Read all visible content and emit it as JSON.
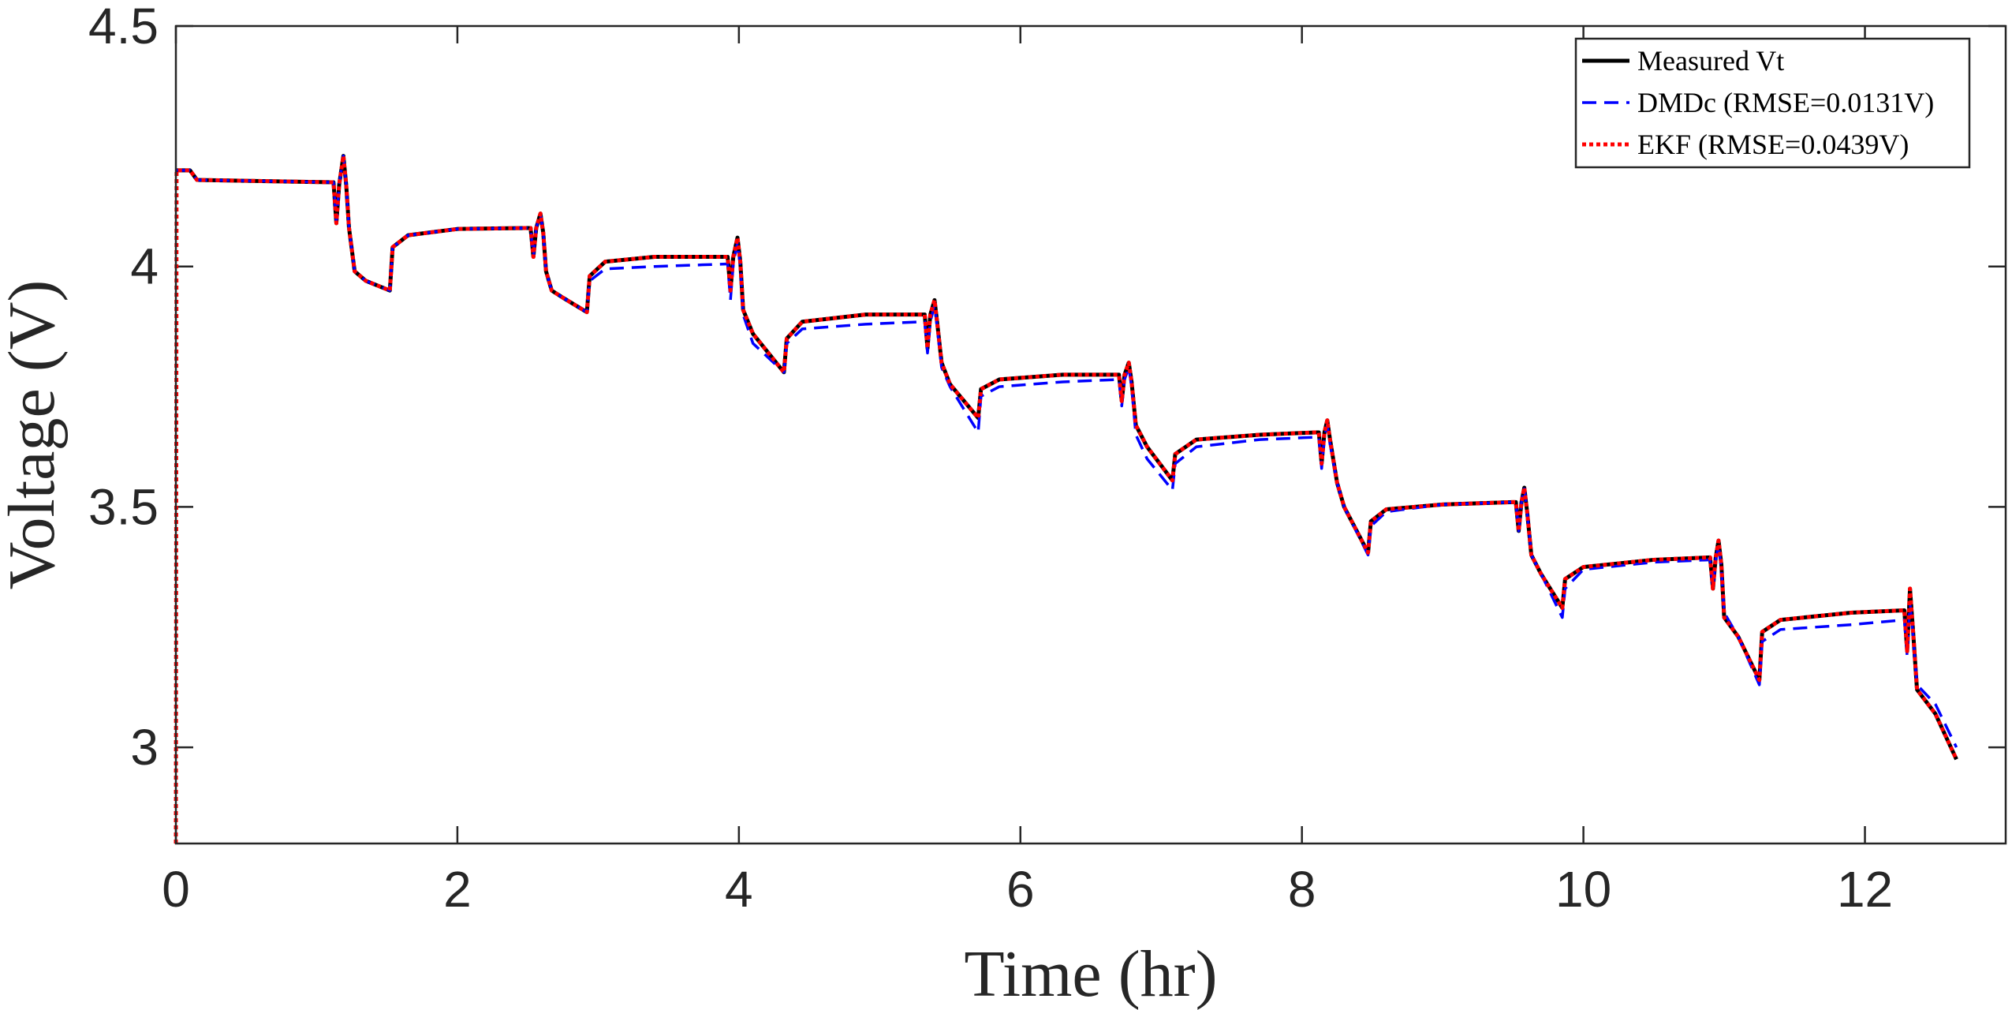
{
  "chart_data": {
    "type": "line",
    "x_label": "Time (hr)",
    "y_label": "Voltage (V)",
    "xlim": [
      0,
      13
    ],
    "ylim": [
      2.8,
      4.5
    ],
    "xticks": [
      0,
      2,
      4,
      6,
      8,
      10,
      12
    ],
    "yticks": [
      3,
      3.5,
      4,
      4.5
    ],
    "grid": false,
    "legend_position": "top-right",
    "x": [
      0,
      0.005,
      0.1,
      0.15,
      1.12,
      1.14,
      1.16,
      1.19,
      1.21,
      1.23,
      1.27,
      1.35,
      1.52,
      1.54,
      1.65,
      2.0,
      2.5,
      2.52,
      2.54,
      2.56,
      2.59,
      2.61,
      2.63,
      2.67,
      2.75,
      2.92,
      2.94,
      3.05,
      3.4,
      3.9,
      3.92,
      3.94,
      3.96,
      3.99,
      4.01,
      4.03,
      4.1,
      4.32,
      4.34,
      4.45,
      4.9,
      5.3,
      5.32,
      5.34,
      5.36,
      5.39,
      5.41,
      5.44,
      5.5,
      5.7,
      5.72,
      5.85,
      6.3,
      6.7,
      6.72,
      6.74,
      6.77,
      6.79,
      6.82,
      6.9,
      7.08,
      7.1,
      7.25,
      7.7,
      8.1,
      8.12,
      8.14,
      8.16,
      8.18,
      8.2,
      8.25,
      8.3,
      8.47,
      8.49,
      8.6,
      9.0,
      9.5,
      9.52,
      9.54,
      9.56,
      9.58,
      9.6,
      9.63,
      9.7,
      9.85,
      9.87,
      10.0,
      10.5,
      10.9,
      10.92,
      10.94,
      10.96,
      10.98,
      11.0,
      11.1,
      11.25,
      11.27,
      11.4,
      11.9,
      12.28,
      12.3,
      12.32,
      12.34,
      12.37,
      12.5,
      12.65
    ],
    "series": [
      {
        "name": "Measured Vt",
        "color": "#000000",
        "style": "solid",
        "values": [
          4.2,
          4.2,
          4.2,
          4.18,
          4.175,
          4.09,
          4.17,
          4.23,
          4.17,
          4.08,
          3.99,
          3.97,
          3.95,
          4.04,
          4.065,
          4.078,
          4.08,
          4.08,
          4.02,
          4.08,
          4.11,
          4.07,
          3.99,
          3.95,
          3.935,
          3.905,
          3.98,
          4.01,
          4.02,
          4.02,
          4.02,
          3.95,
          4.02,
          4.06,
          4.01,
          3.91,
          3.86,
          3.78,
          3.85,
          3.885,
          3.9,
          3.9,
          3.9,
          3.83,
          3.9,
          3.93,
          3.88,
          3.8,
          3.755,
          3.685,
          3.745,
          3.765,
          3.775,
          3.775,
          3.72,
          3.775,
          3.8,
          3.76,
          3.67,
          3.625,
          3.555,
          3.61,
          3.64,
          3.65,
          3.655,
          3.655,
          3.59,
          3.655,
          3.68,
          3.64,
          3.55,
          3.5,
          3.405,
          3.47,
          3.495,
          3.505,
          3.51,
          3.51,
          3.45,
          3.51,
          3.54,
          3.49,
          3.4,
          3.36,
          3.29,
          3.35,
          3.375,
          3.39,
          3.395,
          3.33,
          3.395,
          3.43,
          3.38,
          3.27,
          3.23,
          3.14,
          3.24,
          3.265,
          3.28,
          3.285,
          3.2,
          3.33,
          3.25,
          3.12,
          3.07,
          2.975
        ]
      },
      {
        "name": "DMDc (RMSE=0.0131V)",
        "color": "#0000ff",
        "style": "dashed",
        "values": [
          4.2,
          4.2,
          4.2,
          4.18,
          4.175,
          4.09,
          4.17,
          4.23,
          4.17,
          4.08,
          3.99,
          3.97,
          3.95,
          4.04,
          4.065,
          4.078,
          4.08,
          4.08,
          4.02,
          4.08,
          4.11,
          4.07,
          3.99,
          3.95,
          3.935,
          3.905,
          3.97,
          3.995,
          4.0,
          4.005,
          4.005,
          3.93,
          4.005,
          4.05,
          4.0,
          3.9,
          3.84,
          3.78,
          3.84,
          3.87,
          3.88,
          3.885,
          3.885,
          3.82,
          3.885,
          3.92,
          3.87,
          3.79,
          3.75,
          3.655,
          3.73,
          3.75,
          3.76,
          3.765,
          3.71,
          3.765,
          3.79,
          3.75,
          3.65,
          3.6,
          3.535,
          3.59,
          3.625,
          3.64,
          3.645,
          3.645,
          3.58,
          3.645,
          3.67,
          3.63,
          3.55,
          3.5,
          3.4,
          3.46,
          3.49,
          3.505,
          3.51,
          3.51,
          3.45,
          3.51,
          3.54,
          3.49,
          3.4,
          3.36,
          3.27,
          3.33,
          3.37,
          3.385,
          3.39,
          3.33,
          3.39,
          3.42,
          3.37,
          3.28,
          3.23,
          3.13,
          3.22,
          3.245,
          3.255,
          3.265,
          3.19,
          3.3,
          3.24,
          3.13,
          3.09,
          3.0
        ]
      },
      {
        "name": "EKF (RMSE=0.0439V)",
        "color": "#ff0000",
        "style": "dotted",
        "values": [
          2.8,
          4.2,
          4.2,
          4.18,
          4.175,
          4.09,
          4.17,
          4.23,
          4.17,
          4.08,
          3.99,
          3.97,
          3.95,
          4.04,
          4.065,
          4.078,
          4.08,
          4.08,
          4.02,
          4.08,
          4.11,
          4.07,
          3.99,
          3.95,
          3.935,
          3.905,
          3.98,
          4.01,
          4.02,
          4.02,
          4.02,
          3.95,
          4.02,
          4.06,
          4.01,
          3.91,
          3.86,
          3.78,
          3.85,
          3.885,
          3.9,
          3.9,
          3.9,
          3.83,
          3.9,
          3.93,
          3.88,
          3.8,
          3.755,
          3.685,
          3.745,
          3.765,
          3.775,
          3.775,
          3.72,
          3.775,
          3.8,
          3.76,
          3.67,
          3.625,
          3.555,
          3.61,
          3.64,
          3.65,
          3.655,
          3.655,
          3.59,
          3.655,
          3.68,
          3.64,
          3.55,
          3.5,
          3.405,
          3.47,
          3.495,
          3.505,
          3.51,
          3.51,
          3.45,
          3.51,
          3.54,
          3.49,
          3.4,
          3.36,
          3.29,
          3.35,
          3.375,
          3.39,
          3.395,
          3.33,
          3.395,
          3.43,
          3.38,
          3.27,
          3.23,
          3.14,
          3.24,
          3.265,
          3.28,
          3.285,
          3.2,
          3.33,
          3.25,
          3.12,
          3.07,
          2.975
        ]
      }
    ]
  }
}
